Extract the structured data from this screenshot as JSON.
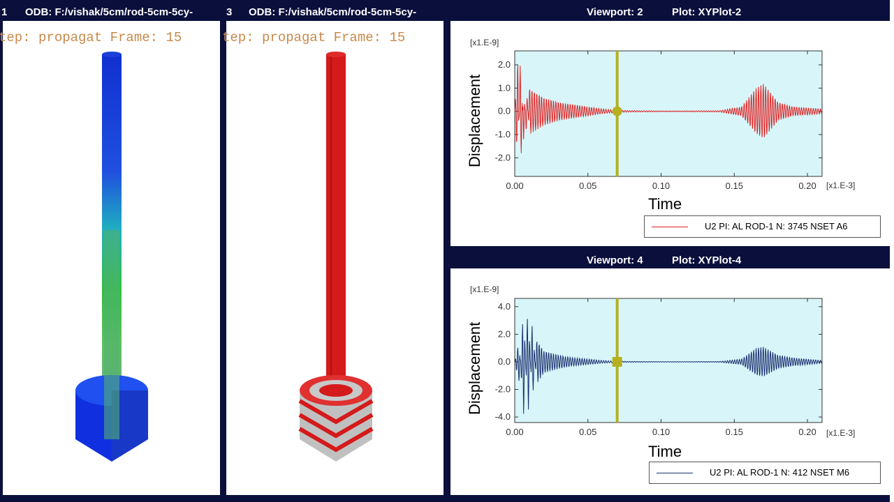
{
  "viewports": [
    {
      "id": "vp1",
      "title_left": "1",
      "title_odb": "ODB: F:/vishak/5cm/rod-5cm-5cy-",
      "frame_label": "tep: propagat Frame: 15"
    },
    {
      "id": "vp3",
      "title_left": "3",
      "title_odb": "ODB: F:/vishak/5cm/rod-5cm-5cy-",
      "frame_label": "tep: propagat Frame: 15"
    }
  ],
  "plots": [
    {
      "viewport_label": "Viewport: 2",
      "plot_label": "Plot: XYPlot-2",
      "ylabel": "Displacement",
      "xlabel": "Time",
      "y_scale": "[x1.E-9]",
      "x_scale": "[x1.E-3]",
      "legend": "U2 PI: AL ROD-1 N: 3745 NSET A6",
      "line_color": "#e02020"
    },
    {
      "viewport_label": "Viewport: 4",
      "plot_label": "Plot: XYPlot-4",
      "ylabel": "Displacement",
      "xlabel": "Time",
      "y_scale": "[x1.E-9]",
      "x_scale": "[x1.E-3]",
      "legend": "U2 PI: AL ROD-1 N: 412 NSET M6",
      "line_color": "#1a2e6e"
    }
  ],
  "chart_data": [
    {
      "type": "line",
      "title": "",
      "xlabel": "Time",
      "ylabel": "Displacement",
      "xlim": [
        0.0,
        0.21
      ],
      "ylim": [
        -2.8,
        2.6
      ],
      "x_ticks": [
        "0.00",
        "0.05",
        "0.10",
        "0.15",
        "0.20"
      ],
      "y_ticks": [
        "2.0",
        "1.0",
        "0.0",
        "-1.0",
        "-2.0"
      ],
      "x_tick_values": [
        0.0,
        0.05,
        0.1,
        0.15,
        0.2
      ],
      "y_tick_values": [
        2.0,
        1.0,
        0.0,
        -1.0,
        -2.0
      ],
      "cursor_x": 0.07,
      "series": [
        {
          "name": "U2 PI: AL ROD-1 N: 3745 NSET A6",
          "x": [
            0.0,
            0.002,
            0.004,
            0.006,
            0.008,
            0.01,
            0.02,
            0.03,
            0.04,
            0.05,
            0.06,
            0.07,
            0.08,
            0.1,
            0.12,
            0.14,
            0.155,
            0.16,
            0.165,
            0.17,
            0.175,
            0.18,
            0.19,
            0.2,
            0.21
          ],
          "y": [
            0.0,
            2.3,
            -2.7,
            1.3,
            -1.1,
            1.0,
            0.6,
            0.4,
            0.3,
            0.2,
            0.1,
            0.05,
            0.03,
            0.02,
            0.02,
            0.03,
            0.2,
            0.6,
            1.0,
            1.2,
            0.8,
            0.4,
            0.2,
            0.15,
            0.1
          ]
        }
      ]
    },
    {
      "type": "line",
      "title": "",
      "xlabel": "Time",
      "ylabel": "Displacement",
      "xlim": [
        0.0,
        0.21
      ],
      "ylim": [
        -4.4,
        4.6
      ],
      "x_ticks": [
        "0.00",
        "0.05",
        "0.10",
        "0.15",
        "0.20"
      ],
      "y_ticks": [
        "4.0",
        "2.0",
        "0.0",
        "-2.0",
        "-4.0"
      ],
      "x_tick_values": [
        0.0,
        0.05,
        0.1,
        0.15,
        0.2
      ],
      "y_tick_values": [
        4.0,
        2.0,
        0.0,
        -2.0,
        -4.0
      ],
      "cursor_x": 0.07,
      "series": [
        {
          "name": "U2 PI: AL ROD-1 N: 412 NSET M6",
          "x": [
            0.0,
            0.003,
            0.006,
            0.009,
            0.012,
            0.015,
            0.02,
            0.03,
            0.04,
            0.05,
            0.06,
            0.07,
            0.08,
            0.1,
            0.12,
            0.14,
            0.155,
            0.16,
            0.165,
            0.17,
            0.175,
            0.18,
            0.19,
            0.2,
            0.21
          ],
          "y": [
            0.0,
            1.5,
            -4.0,
            4.3,
            -3.0,
            1.6,
            0.8,
            0.5,
            0.3,
            0.2,
            0.1,
            0.05,
            0.03,
            0.02,
            0.02,
            0.03,
            0.2,
            0.6,
            1.0,
            1.1,
            0.8,
            0.5,
            0.3,
            0.2,
            0.1
          ]
        }
      ]
    }
  ]
}
